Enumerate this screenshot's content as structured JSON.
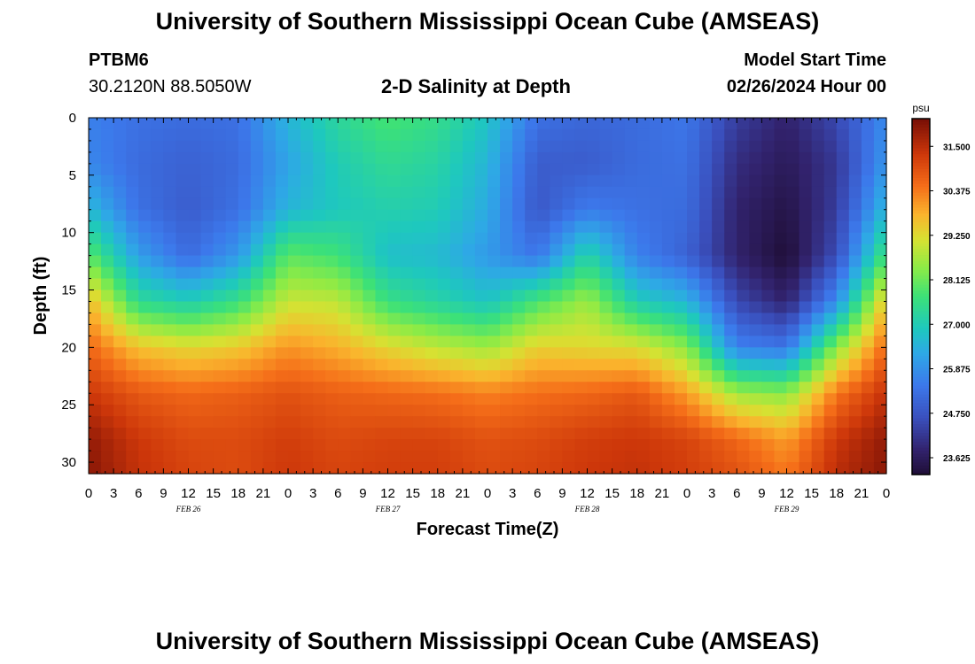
{
  "header": {
    "title": "University of Southern Mississippi Ocean Cube (AMSEAS)",
    "station": "PTBM6",
    "coords": "30.2120N  88.5050W",
    "plot_title": "2-D Salinity at Depth",
    "model_start_label": "Model Start Time",
    "model_start_value": "02/26/2024 Hour 00"
  },
  "footer": {
    "title": "University of Southern Mississippi Ocean Cube (AMSEAS)"
  },
  "colors": {
    "background": "#ffffff",
    "axis": "#000000"
  },
  "chart_data": {
    "type": "heatmap",
    "title": "2-D Salinity at Depth",
    "xlabel": "Forecast Time(Z)",
    "ylabel": "Depth (ft)",
    "x_range_hours": [
      0,
      96
    ],
    "y_range_ft": [
      0,
      31
    ],
    "x_tick_hours": [
      0,
      3,
      6,
      9,
      12,
      15,
      18,
      21,
      24,
      27,
      30,
      33,
      36,
      39,
      42,
      45,
      48,
      51,
      54,
      57,
      60,
      63,
      66,
      69,
      72,
      75,
      78,
      81,
      84,
      87,
      90,
      93,
      96
    ],
    "x_tick_labels": [
      "0",
      "3",
      "6",
      "9",
      "12",
      "15",
      "18",
      "21",
      "0",
      "3",
      "6",
      "9",
      "12",
      "15",
      "18",
      "21",
      "0",
      "3",
      "6",
      "9",
      "12",
      "15",
      "18",
      "21",
      "0",
      "3",
      "6",
      "9",
      "12",
      "15",
      "18",
      "21",
      "0"
    ],
    "y_ticks": [
      0,
      5,
      10,
      15,
      20,
      25,
      30
    ],
    "day_labels": [
      {
        "label": "FEB 26",
        "hour": 12
      },
      {
        "label": "FEB 27",
        "hour": 36
      },
      {
        "label": "FEB 28",
        "hour": 60
      },
      {
        "label": "FEB 29",
        "hour": 84
      }
    ],
    "colorbar": {
      "unit": "psu",
      "min": 23.2,
      "max": 32.2,
      "ticks": [
        31.5,
        30.375,
        29.25,
        28.125,
        27.0,
        25.875,
        24.75,
        23.625
      ],
      "tick_labels": [
        "31.500",
        "30.375",
        "29.250",
        "28.125",
        "27.000",
        "25.875",
        "24.750",
        "23.625"
      ]
    },
    "hours": [
      0,
      6,
      12,
      18,
      24,
      30,
      36,
      42,
      48,
      54,
      60,
      66,
      72,
      78,
      84,
      90,
      96
    ],
    "depths_ft": [
      0,
      4,
      8,
      12,
      16,
      20,
      24,
      28,
      31
    ],
    "salinity_psu": [
      [
        25.6,
        25.3,
        25.2,
        25.3,
        26.5,
        27.3,
        27.8,
        27.5,
        26.8,
        25.3,
        25.1,
        25.2,
        25.4,
        24.3,
        23.8,
        24.5,
        25.8
      ],
      [
        25.7,
        25.2,
        25.0,
        25.2,
        26.2,
        27.0,
        27.4,
        27.2,
        26.5,
        24.9,
        24.9,
        25.2,
        25.3,
        24.0,
        23.6,
        24.2,
        26.0
      ],
      [
        26.6,
        25.3,
        24.9,
        25.3,
        26.5,
        26.9,
        27.1,
        27.0,
        26.3,
        24.8,
        25.5,
        25.3,
        25.2,
        23.8,
        23.4,
        24.3,
        26.6
      ],
      [
        28.0,
        26.1,
        25.2,
        26.0,
        28.0,
        27.7,
        26.7,
        26.6,
        26.0,
        25.4,
        27.2,
        25.6,
        25.0,
        23.8,
        23.2,
        24.6,
        27.8
      ],
      [
        29.7,
        27.4,
        27.0,
        27.6,
        29.0,
        28.9,
        27.6,
        27.2,
        26.8,
        27.8,
        28.6,
        27.0,
        26.5,
        24.5,
        23.8,
        25.8,
        29.6
      ],
      [
        30.6,
        29.6,
        29.3,
        29.5,
        30.1,
        29.8,
        29.3,
        28.9,
        28.6,
        29.4,
        29.3,
        29.2,
        28.4,
        25.6,
        25.4,
        28.4,
        30.6
      ],
      [
        31.3,
        30.8,
        30.6,
        30.7,
        30.9,
        30.7,
        30.6,
        30.5,
        30.3,
        30.5,
        30.6,
        30.8,
        30.0,
        28.6,
        28.4,
        30.4,
        31.4
      ],
      [
        31.9,
        31.3,
        31.0,
        31.0,
        31.2,
        31.0,
        31.1,
        31.1,
        30.9,
        31.0,
        31.2,
        31.3,
        31.1,
        30.6,
        30.0,
        31.3,
        31.9
      ],
      [
        32.0,
        31.4,
        31.1,
        31.0,
        31.3,
        31.1,
        31.2,
        31.2,
        31.0,
        31.1,
        31.3,
        31.4,
        31.2,
        30.9,
        30.4,
        31.5,
        32.0
      ]
    ]
  }
}
